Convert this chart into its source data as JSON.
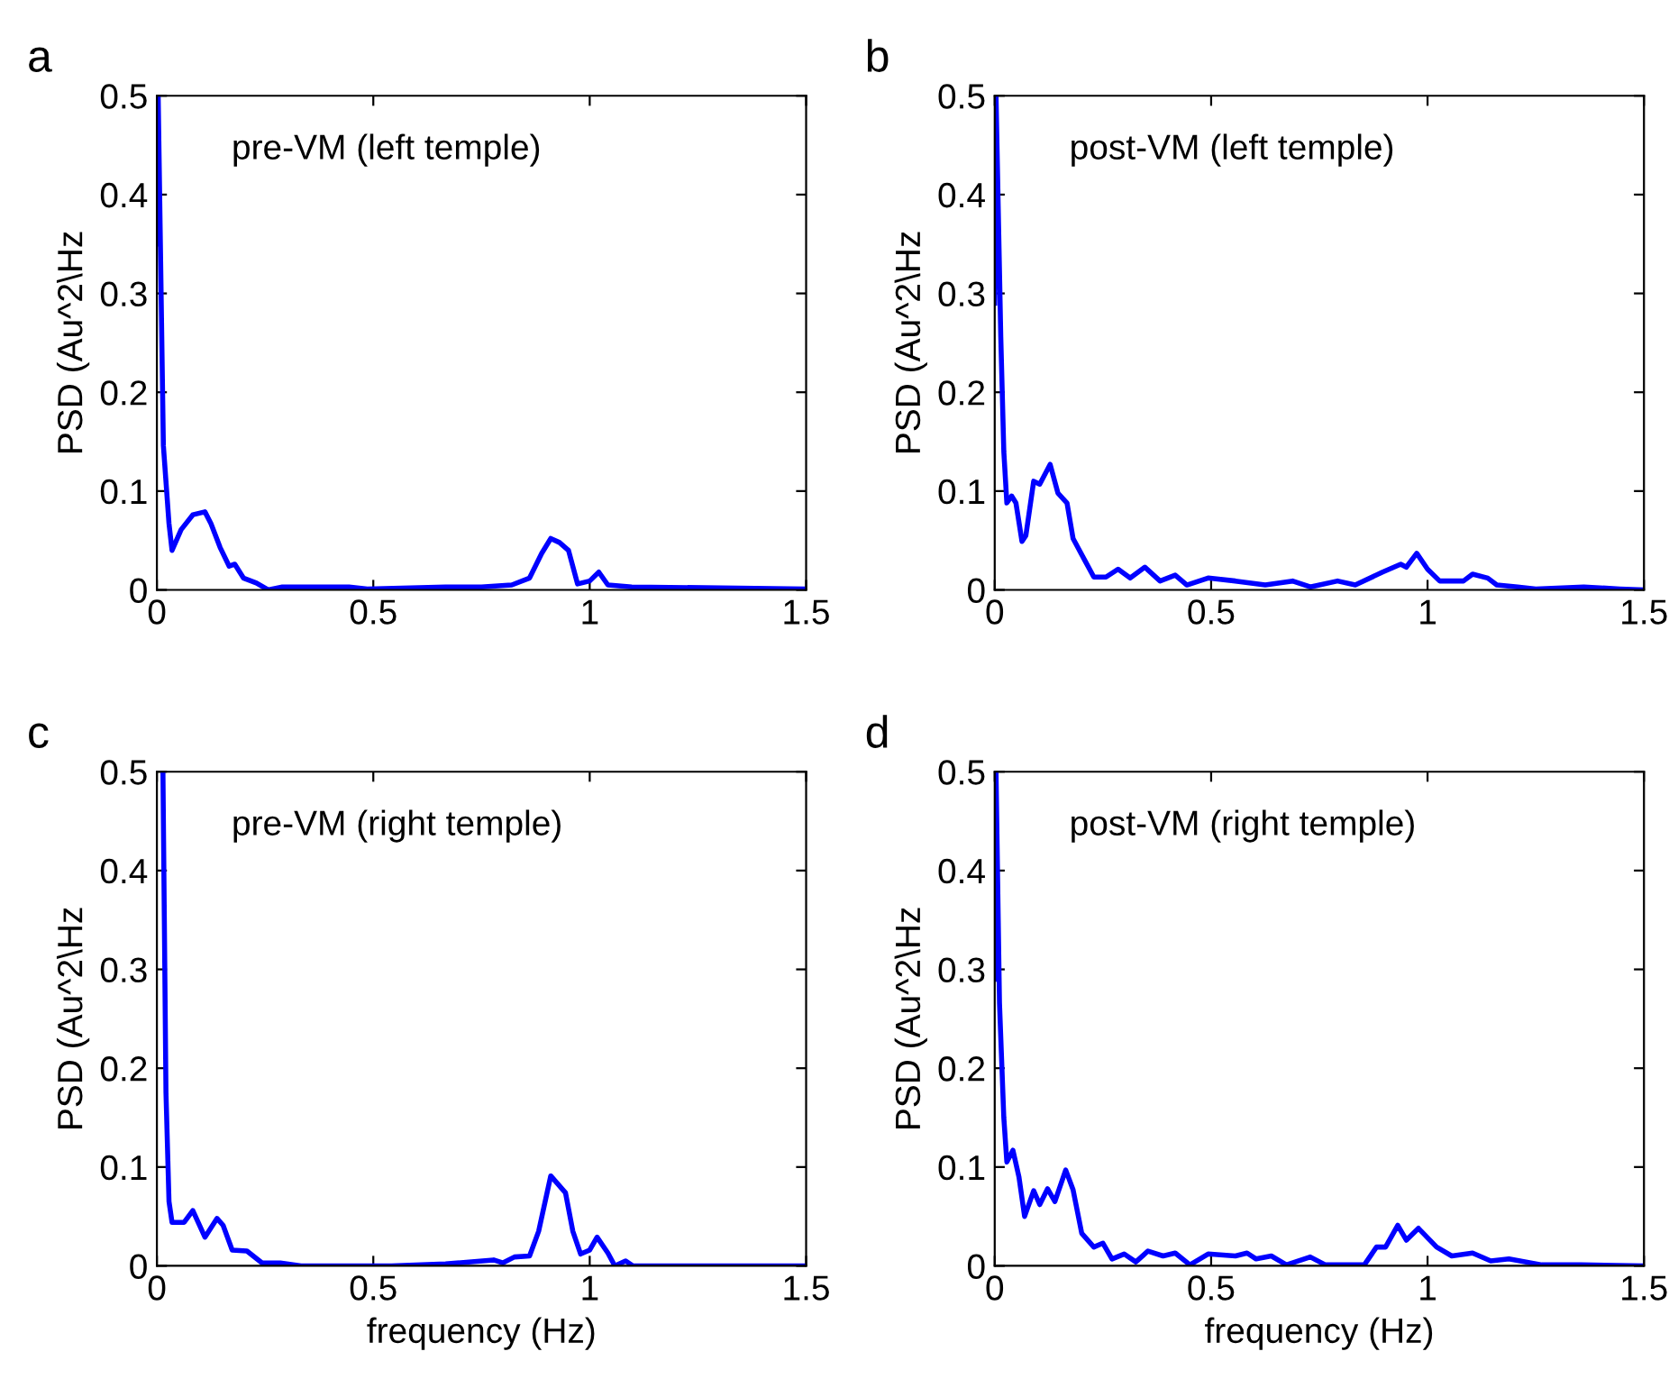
{
  "chart_data": [
    {
      "type": "line",
      "title": "a",
      "ylabel": "PSD (Au^2\\Hz",
      "annotations": [
        "pre-VM (left temple)"
      ],
      "xlim": [
        0,
        1.5
      ],
      "ylim": [
        0,
        0.5
      ],
      "xticks": [
        0,
        0.5,
        1,
        1.5
      ],
      "yticks": [
        0,
        0.1,
        0.2,
        0.3,
        0.4,
        0.5
      ],
      "grid": false,
      "series": [
        {
          "color": "#0000ff",
          "x": [
            0,
            0.003,
            0.015,
            0.028,
            0.035,
            0.056,
            0.083,
            0.111,
            0.125,
            0.146,
            0.167,
            0.18,
            0.2,
            0.23,
            0.257,
            0.29,
            0.333,
            0.39,
            0.444,
            0.486,
            0.667,
            0.75,
            0.82,
            0.861,
            0.889,
            0.91,
            0.93,
            0.951,
            0.972,
            1.0,
            1.021,
            1.042,
            1.097,
            1.5
          ],
          "values": [
            0.35,
            0.5,
            0.146,
            0.067,
            0.04,
            0.061,
            0.076,
            0.079,
            0.067,
            0.043,
            0.024,
            0.026,
            0.012,
            0.007,
            0,
            0.003,
            0.003,
            0.003,
            0.003,
            0.001,
            0.003,
            0.003,
            0.005,
            0.012,
            0.037,
            0.052,
            0.048,
            0.04,
            0.006,
            0.009,
            0.018,
            0.005,
            0.003,
            0.001
          ]
        }
      ]
    },
    {
      "type": "line",
      "title": "b",
      "ylabel": "PSD (Au^2\\Hz",
      "annotations": [
        "post-VM (left temple)"
      ],
      "xlim": [
        0,
        1.5
      ],
      "ylim": [
        0,
        0.5
      ],
      "xticks": [
        0,
        0.5,
        1,
        1.5
      ],
      "yticks": [
        0,
        0.1,
        0.2,
        0.3,
        0.4,
        0.5
      ],
      "grid": false,
      "series": [
        {
          "color": "#0000ff",
          "x": [
            0,
            0.003,
            0.014,
            0.021,
            0.028,
            0.039,
            0.049,
            0.063,
            0.072,
            0.09,
            0.104,
            0.128,
            0.146,
            0.167,
            0.181,
            0.208,
            0.229,
            0.257,
            0.285,
            0.313,
            0.347,
            0.382,
            0.417,
            0.444,
            0.493,
            0.556,
            0.625,
            0.688,
            0.729,
            0.792,
            0.833,
            0.896,
            0.938,
            0.951,
            0.975,
            1.0,
            1.028,
            1.083,
            1.104,
            1.139,
            1.16,
            1.208,
            1.25,
            1.361,
            1.444,
            1.5
          ],
          "values": [
            0.29,
            0.5,
            0.256,
            0.14,
            0.088,
            0.095,
            0.088,
            0.049,
            0.055,
            0.11,
            0.107,
            0.127,
            0.098,
            0.088,
            0.052,
            0.03,
            0.013,
            0.013,
            0.021,
            0.012,
            0.023,
            0.009,
            0.015,
            0.005,
            0.012,
            0.009,
            0.005,
            0.009,
            0.003,
            0.009,
            0.005,
            0.018,
            0.026,
            0.023,
            0.037,
            0.021,
            0.009,
            0.009,
            0.016,
            0.012,
            0.005,
            0.003,
            0.001,
            0.003,
            0.001,
            0
          ]
        }
      ]
    },
    {
      "type": "line",
      "title": "c",
      "xlabel": "frequency (Hz)",
      "ylabel": "PSD (Au^2\\Hz",
      "annotations": [
        "pre-VM (right temple)"
      ],
      "xlim": [
        0,
        1.5
      ],
      "ylim": [
        0,
        0.5
      ],
      "xticks": [
        0,
        0.5,
        1,
        1.5
      ],
      "yticks": [
        0,
        0.1,
        0.2,
        0.3,
        0.4,
        0.5
      ],
      "grid": false,
      "series": [
        {
          "color": "#0000ff",
          "x": [
            0.014,
            0.021,
            0.028,
            0.035,
            0.063,
            0.083,
            0.111,
            0.139,
            0.153,
            0.174,
            0.208,
            0.243,
            0.285,
            0.333,
            0.542,
            0.667,
            0.778,
            0.799,
            0.826,
            0.861,
            0.882,
            0.91,
            0.944,
            0.961,
            0.979,
            1.0,
            1.017,
            1.042,
            1.058,
            1.083,
            1.1,
            1.5
          ],
          "values": [
            0.5,
            0.175,
            0.065,
            0.044,
            0.044,
            0.056,
            0.029,
            0.048,
            0.041,
            0.016,
            0.015,
            0.003,
            0.003,
            0,
            0,
            0.002,
            0.006,
            0.003,
            0.009,
            0.01,
            0.035,
            0.091,
            0.074,
            0.035,
            0.012,
            0.016,
            0.029,
            0.013,
            0,
            0.005,
            0,
            0
          ]
        }
      ]
    },
    {
      "type": "line",
      "title": "d",
      "xlabel": "frequency (Hz)",
      "ylabel": "PSD (Au^2\\Hz",
      "annotations": [
        "post-VM (right temple)"
      ],
      "xlim": [
        0,
        1.5
      ],
      "ylim": [
        0,
        0.5
      ],
      "xticks": [
        0,
        0.5,
        1,
        1.5
      ],
      "yticks": [
        0,
        0.1,
        0.2,
        0.3,
        0.4,
        0.5
      ],
      "grid": false,
      "series": [
        {
          "color": "#0000ff",
          "x": [
            0,
            0.003,
            0.011,
            0.021,
            0.028,
            0.042,
            0.056,
            0.069,
            0.09,
            0.104,
            0.122,
            0.139,
            0.164,
            0.181,
            0.201,
            0.229,
            0.25,
            0.271,
            0.299,
            0.326,
            0.354,
            0.389,
            0.417,
            0.451,
            0.493,
            0.556,
            0.583,
            0.604,
            0.639,
            0.674,
            0.729,
            0.764,
            0.854,
            0.882,
            0.903,
            0.931,
            0.951,
            0.979,
            1.021,
            1.056,
            1.104,
            1.146,
            1.188,
            1.264,
            1.354,
            1.5
          ],
          "values": [
            0.29,
            0.5,
            0.266,
            0.15,
            0.105,
            0.117,
            0.09,
            0.05,
            0.076,
            0.062,
            0.078,
            0.065,
            0.097,
            0.077,
            0.033,
            0.019,
            0.023,
            0.007,
            0.012,
            0.004,
            0.015,
            0.01,
            0.013,
            0.001,
            0.012,
            0.01,
            0.013,
            0.007,
            0.01,
            0.001,
            0.009,
            0.001,
            0.001,
            0.019,
            0.019,
            0.041,
            0.026,
            0.038,
            0.019,
            0.01,
            0.013,
            0.005,
            0.007,
            0.001,
            0.001,
            0
          ]
        }
      ]
    }
  ]
}
